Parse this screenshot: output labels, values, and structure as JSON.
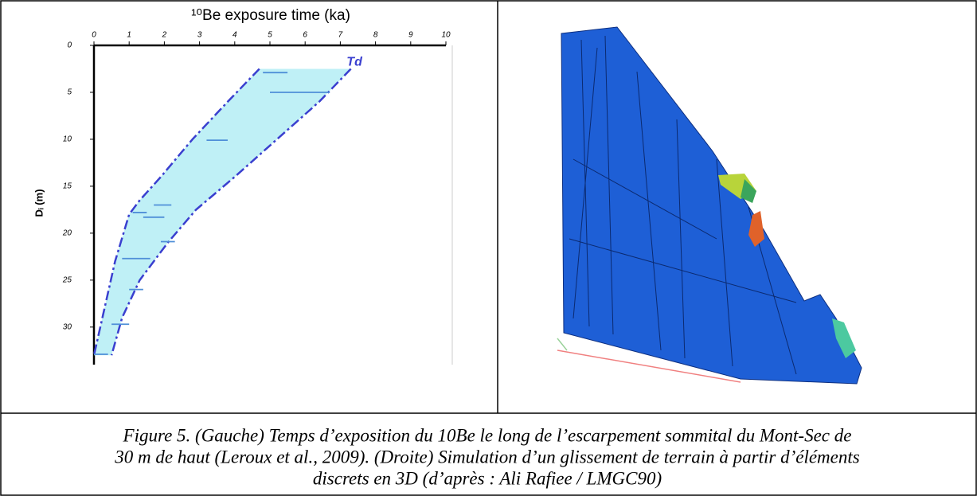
{
  "chart_data": {
    "type": "errorbar-envelope",
    "title": "¹⁰Be exposure time (ka)",
    "y_label": "Dᵢ (m)",
    "annotation": "Td",
    "xlim": [
      0,
      10
    ],
    "xticks": [
      0,
      1,
      2,
      3,
      4,
      5,
      6,
      7,
      8,
      9,
      10
    ],
    "ylim": [
      0,
      34
    ],
    "yticks": [
      0,
      5,
      10,
      15,
      20,
      25,
      30
    ],
    "y_inverted": true,
    "bar_color": "#4f8fd8",
    "line_color": "#3a3fcf",
    "fill_color": "#bff0f6",
    "depth": [
      2.9,
      5,
      10.1,
      17,
      17.8,
      18.3,
      20.9,
      22.7,
      26,
      29.7,
      32.9
    ],
    "xmin": [
      4.8,
      5.0,
      3.2,
      1.7,
      1.1,
      1.4,
      1.9,
      0.8,
      1.0,
      0.5,
      0
    ],
    "xmax": [
      5.5,
      6.7,
      3.8,
      2.2,
      1.5,
      2.0,
      2.3,
      1.6,
      1.4,
      1.0,
      0.4
    ],
    "envelope_left": {
      "x": [
        4.7,
        3.8,
        2.8,
        1.9,
        1.3,
        1.0,
        0.6,
        0.3,
        0
      ],
      "y": [
        2.5,
        6,
        10,
        14,
        16.5,
        18,
        23,
        28,
        33
      ]
    },
    "envelope_right": {
      "x": [
        7.3,
        6.4,
        5.2,
        4.0,
        2.9,
        2.1,
        1.3,
        0.8,
        0.5
      ],
      "y": [
        2.5,
        6,
        10,
        14,
        17.5,
        21,
        25,
        29,
        33
      ]
    }
  },
  "caption": {
    "lines": [
      "Figure 5. (Gauche) Temps d’exposition du 10Be le long de l’escarpement sommital du Mont-Sec de",
      "30 m de haut (Leroux et al., 2009). (Droite) Simulation d’un glissement de terrain à partir d’éléments",
      "discrets en 3D (d’après : Ali Rafiee / LMGC90)"
    ]
  }
}
